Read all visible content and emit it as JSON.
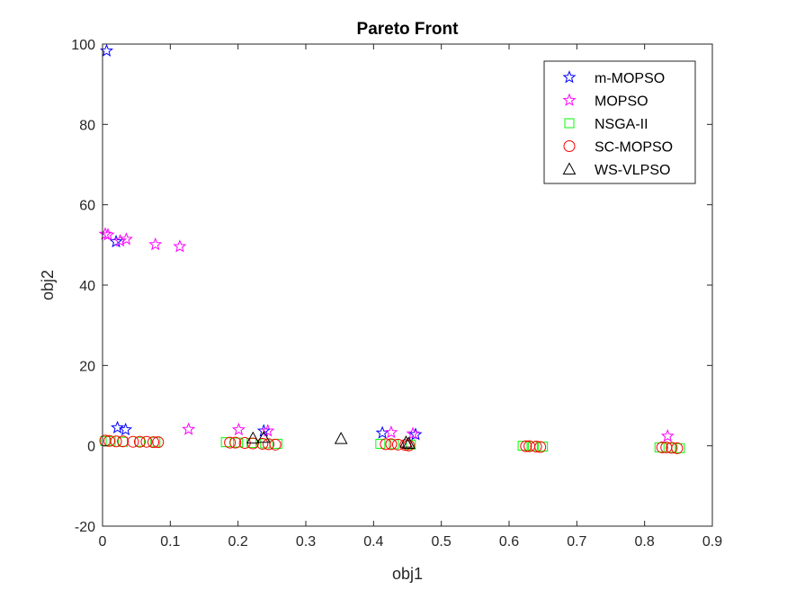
{
  "chart_data": {
    "type": "scatter",
    "title": "Pareto Front",
    "xlabel": "obj1",
    "ylabel": "obj2",
    "xlim": [
      0,
      0.9
    ],
    "ylim": [
      -20,
      100
    ],
    "xticks": [
      0,
      0.1,
      0.2,
      0.3,
      0.4,
      0.5,
      0.6,
      0.7,
      0.8,
      0.9
    ],
    "xtick_labels": [
      "0",
      "0.1",
      "0.2",
      "0.3",
      "0.4",
      "0.5",
      "0.6",
      "0.7",
      "0.8",
      "0.9"
    ],
    "yticks": [
      -20,
      0,
      20,
      40,
      60,
      80,
      100
    ],
    "ytick_labels": [
      "-20",
      "0",
      "20",
      "40",
      "60",
      "80",
      "100"
    ],
    "grid": false,
    "legend_position": "top-right",
    "series": [
      {
        "name": "m-MOPSO",
        "marker": "star",
        "color": "#0000ff",
        "points": [
          [
            0.006,
            98.3
          ],
          [
            0.02,
            50.8
          ],
          [
            0.022,
            4.5
          ],
          [
            0.034,
            4.0
          ],
          [
            0.238,
            3.7
          ],
          [
            0.413,
            3.2
          ],
          [
            0.462,
            2.8
          ]
        ]
      },
      {
        "name": "MOPSO",
        "marker": "star",
        "color": "#ff00ff",
        "points": [
          [
            0.004,
            52.7
          ],
          [
            0.008,
            52.5
          ],
          [
            0.026,
            51.0
          ],
          [
            0.035,
            51.4
          ],
          [
            0.078,
            50.1
          ],
          [
            0.114,
            49.6
          ],
          [
            0.127,
            4.1
          ],
          [
            0.201,
            4.0
          ],
          [
            0.244,
            3.7
          ],
          [
            0.426,
            3.3
          ],
          [
            0.458,
            3.0
          ],
          [
            0.834,
            2.4
          ]
        ]
      },
      {
        "name": "NSGA-II",
        "marker": "square",
        "color": "#00ff00",
        "points": [
          [
            0.004,
            1.2
          ],
          [
            0.012,
            1.2
          ],
          [
            0.03,
            1.0
          ],
          [
            0.055,
            1.0
          ],
          [
            0.078,
            1.0
          ],
          [
            0.182,
            0.9
          ],
          [
            0.2,
            0.8
          ],
          [
            0.22,
            0.7
          ],
          [
            0.24,
            0.6
          ],
          [
            0.258,
            0.5
          ],
          [
            0.41,
            0.5
          ],
          [
            0.43,
            0.4
          ],
          [
            0.455,
            0.3
          ],
          [
            0.62,
            0.0
          ],
          [
            0.635,
            -0.1
          ],
          [
            0.65,
            -0.2
          ],
          [
            0.822,
            -0.4
          ],
          [
            0.84,
            -0.5
          ],
          [
            0.852,
            -0.6
          ]
        ]
      },
      {
        "name": "SC-MOPSO",
        "marker": "circle",
        "color": "#ff0000",
        "points": [
          [
            0.004,
            1.3
          ],
          [
            0.01,
            1.2
          ],
          [
            0.02,
            1.1
          ],
          [
            0.03,
            1.1
          ],
          [
            0.045,
            1.0
          ],
          [
            0.055,
            1.0
          ],
          [
            0.065,
            1.0
          ],
          [
            0.075,
            0.9
          ],
          [
            0.082,
            0.9
          ],
          [
            0.188,
            0.8
          ],
          [
            0.196,
            0.8
          ],
          [
            0.21,
            0.7
          ],
          [
            0.222,
            0.6
          ],
          [
            0.236,
            0.5
          ],
          [
            0.245,
            0.4
          ],
          [
            0.255,
            0.3
          ],
          [
            0.418,
            0.4
          ],
          [
            0.426,
            0.4
          ],
          [
            0.436,
            0.3
          ],
          [
            0.447,
            0.2
          ],
          [
            0.452,
            0.1
          ],
          [
            0.625,
            -0.1
          ],
          [
            0.63,
            -0.1
          ],
          [
            0.64,
            -0.2
          ],
          [
            0.646,
            -0.3
          ],
          [
            0.826,
            -0.4
          ],
          [
            0.832,
            -0.4
          ],
          [
            0.84,
            -0.5
          ],
          [
            0.848,
            -0.6
          ]
        ]
      },
      {
        "name": "WS-VLPSO",
        "marker": "triangle",
        "color": "#000000",
        "points": [
          [
            0.222,
            1.9
          ],
          [
            0.238,
            2.1
          ],
          [
            0.352,
            1.8
          ],
          [
            0.448,
            0.9
          ],
          [
            0.452,
            0.6
          ]
        ]
      }
    ]
  }
}
